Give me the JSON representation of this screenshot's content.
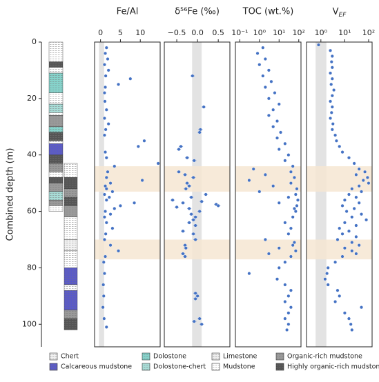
{
  "depth_axis": {
    "label": "Combined depth (m)",
    "ylim": [
      0,
      108
    ],
    "yticks": [
      0,
      20,
      40,
      60,
      80,
      100
    ]
  },
  "highlight_intervals": [
    [
      44,
      53
    ],
    [
      70,
      77
    ]
  ],
  "chart_data": [
    {
      "type": "scatter",
      "title": "Fe/Al",
      "color": "#4472c4",
      "xlim": [
        -1.5,
        15
      ],
      "xticks": [
        0,
        5,
        10
      ],
      "reference_band": [
        -0.4,
        0.9
      ],
      "y": [
        2,
        4,
        6,
        8,
        10,
        12,
        13,
        15,
        16,
        18,
        21,
        24,
        27,
        29,
        31,
        33,
        35,
        37,
        39,
        41,
        43,
        44,
        46,
        48,
        49,
        50,
        51,
        52,
        53,
        54,
        55,
        56,
        57,
        58,
        59,
        60,
        61,
        62,
        64,
        66,
        68,
        70,
        72,
        74,
        76,
        78,
        82,
        86,
        90,
        94,
        98,
        101
      ],
      "x": [
        1.5,
        1.2,
        1.8,
        1.0,
        2.0,
        1.3,
        7.5,
        4.5,
        1.2,
        1.0,
        1.1,
        1.5,
        1.0,
        2.0,
        1.3,
        1.0,
        11.0,
        9.5,
        1.2,
        1.5,
        14.5,
        3.5,
        1.8,
        1.5,
        10.5,
        2.5,
        1.2,
        1.5,
        3.0,
        1.0,
        2.2,
        1.5,
        8.5,
        5.0,
        3.5,
        1.2,
        2.5,
        1.0,
        1.5,
        3.0,
        1.3,
        1.0,
        2.5,
        4.5,
        1.2,
        0.8,
        1.0,
        0.7,
        0.8,
        0.6,
        0.9,
        1.5
      ]
    },
    {
      "type": "errorbar",
      "title": "δ⁵⁶Fe (‰)",
      "color": "#4472c4",
      "xlim": [
        -0.8,
        0.78
      ],
      "xticks": [
        {
          "value": -0.5,
          "label": "−0.5"
        },
        {
          "value": 0,
          "label": "0.0"
        },
        {
          "value": 0.5,
          "label": "0.5"
        }
      ],
      "reference_band": [
        -0.13,
        0.1
      ],
      "y": [
        12,
        23,
        31,
        32,
        37,
        38,
        41,
        42,
        46,
        47,
        48,
        50,
        51,
        52,
        54,
        55,
        56,
        56.5,
        57,
        57.5,
        58,
        58.5,
        59,
        60,
        61,
        62,
        63,
        64,
        65,
        67,
        68,
        70,
        72,
        73,
        75,
        76,
        89,
        90,
        91,
        98,
        99,
        100
      ],
      "x": [
        -0.12,
        0.15,
        0.07,
        0.05,
        -0.4,
        -0.45,
        -0.25,
        -0.08,
        -0.45,
        -0.3,
        -0.1,
        -0.25,
        -0.2,
        -0.28,
        0.2,
        -0.15,
        -0.6,
        0.1,
        -0.35,
        0.45,
        0.5,
        -0.5,
        -0.2,
        0.05,
        -0.15,
        -0.05,
        -0.1,
        -0.2,
        -0.05,
        -0.35,
        -0.1,
        -0.05,
        -0.3,
        -0.28,
        -0.35,
        -0.3,
        -0.05,
        0.0,
        -0.05,
        0.05,
        -0.08,
        0.1
      ],
      "xerr": [
        0.05,
        0.05,
        0.05,
        0.05,
        0.05,
        0.05,
        0.05,
        0.05,
        0.05,
        0.05,
        0.05,
        0.05,
        0.05,
        0.05,
        0.05,
        0.05,
        0.05,
        0.05,
        0.05,
        0.05,
        0.05,
        0.05,
        0.05,
        0.05,
        0.05,
        0.05,
        0.05,
        0.05,
        0.05,
        0.05,
        0.05,
        0.05,
        0.05,
        0.05,
        0.05,
        0.05,
        0.05,
        0.05,
        0.05,
        0.05,
        0.05,
        0.05
      ]
    },
    {
      "type": "scatter",
      "title": "TOC (wt.%)",
      "color": "#4472c4",
      "xscale": "log",
      "xlim": [
        0.06,
        130
      ],
      "xticks": [
        {
          "value": 0.1,
          "label": "10⁻¹"
        },
        {
          "value": 1,
          "label": "10⁰"
        },
        {
          "value": 10,
          "label": "10¹"
        },
        {
          "value": 100,
          "label": "10²"
        }
      ],
      "y": [
        2,
        4,
        6,
        8,
        10,
        12,
        14,
        16,
        18,
        20,
        22,
        24,
        26,
        28,
        30,
        32,
        34,
        36,
        38,
        40,
        42,
        44,
        45,
        46,
        47,
        48,
        49,
        50,
        51,
        52,
        53,
        54,
        55,
        56,
        57,
        58,
        59,
        60,
        62,
        64,
        66,
        68,
        70,
        71,
        72,
        73,
        74,
        75,
        76,
        78,
        80,
        82,
        84,
        86,
        88,
        90,
        92,
        94,
        96,
        98,
        100,
        102
      ],
      "x": [
        1.5,
        0.8,
        2,
        1,
        3,
        1.5,
        4,
        2,
        6,
        3,
        10,
        5,
        3,
        8,
        5,
        12,
        8,
        20,
        10,
        30,
        20,
        50,
        0.5,
        40,
        2,
        60,
        0.3,
        40,
        5,
        80,
        1,
        70,
        30,
        90,
        10,
        80,
        60,
        70,
        50,
        20,
        40,
        30,
        2,
        60,
        50,
        10,
        70,
        3,
        40,
        20,
        10,
        0.3,
        8,
        20,
        40,
        30,
        20,
        40,
        30,
        20,
        30,
        25
      ]
    },
    {
      "type": "scatter",
      "title": [
        "V",
        "EF"
      ],
      "color": "#4472c4",
      "xscale": "log",
      "xlim": [
        0.25,
        140
      ],
      "xticks": [
        {
          "value": 1,
          "label": "10⁰"
        },
        {
          "value": 10,
          "label": "10¹"
        },
        {
          "value": 100,
          "label": "10²"
        }
      ],
      "reference_band": [
        0.6,
        1.7
      ],
      "y": [
        1,
        3,
        5,
        7,
        9,
        11,
        13,
        15,
        17,
        19,
        21,
        23,
        25,
        27,
        29,
        31,
        33,
        35,
        37,
        39,
        41,
        43,
        45,
        46,
        47,
        48,
        49,
        50,
        51,
        52,
        53,
        54,
        55,
        56,
        57,
        58,
        59,
        60,
        61,
        62,
        63,
        64,
        65,
        66,
        67,
        68,
        69,
        70,
        71,
        72,
        73,
        74,
        75,
        76,
        78,
        80,
        82,
        84,
        86,
        88,
        90,
        92,
        94,
        96,
        98,
        100,
        102
      ],
      "x": [
        0.8,
        2.5,
        3,
        2.8,
        3,
        2.5,
        3,
        2.7,
        3.5,
        3,
        2.5,
        3,
        2.8,
        2.5,
        3.2,
        3,
        4,
        4.5,
        6,
        8,
        15,
        25,
        40,
        70,
        30,
        90,
        60,
        100,
        40,
        20,
        50,
        15,
        30,
        10,
        40,
        8,
        25,
        12,
        50,
        20,
        80,
        10,
        30,
        6,
        15,
        8,
        30,
        5,
        20,
        40,
        10,
        20,
        30,
        8,
        4,
        2,
        1.8,
        1.5,
        2,
        5,
        6,
        4,
        50,
        10,
        15,
        18,
        20
      ]
    }
  ],
  "lithology": {
    "legend": [
      {
        "name": "Chert",
        "color": "#f2f2f2"
      },
      {
        "name": "Calcareous mudstone",
        "color": "#5a5ac8"
      },
      {
        "name": "Dolostone",
        "color": "#86d3cb"
      },
      {
        "name": "Dolostone-chert",
        "color": "#a8ddd7"
      },
      {
        "name": "Limestone",
        "color": "#eeeeee"
      },
      {
        "name": "Mudstone",
        "color": "#ffffff"
      },
      {
        "name": "Organic-rich mudstone",
        "color": "#9a9a9a"
      },
      {
        "name": "Highly organic-rich mudstone",
        "color": "#555555"
      }
    ],
    "columns": [
      [
        [
          0,
          7,
          5
        ],
        [
          7,
          9,
          7
        ],
        [
          9,
          11,
          5
        ],
        [
          11,
          18,
          2
        ],
        [
          18,
          22,
          5
        ],
        [
          22,
          25,
          3
        ],
        [
          25,
          26,
          5
        ],
        [
          26,
          30,
          6
        ],
        [
          30,
          32,
          2
        ],
        [
          32,
          35,
          7
        ],
        [
          35,
          36,
          5
        ],
        [
          36,
          40,
          1
        ],
        [
          40,
          43,
          7
        ],
        [
          43,
          46,
          6
        ],
        [
          46,
          48,
          5
        ],
        [
          48,
          50,
          7
        ],
        [
          50,
          53,
          6
        ],
        [
          53,
          56,
          3
        ],
        [
          56,
          58,
          6
        ],
        [
          58,
          60,
          5
        ]
      ],
      [
        [
          43,
          48,
          5
        ],
        [
          48,
          52,
          7
        ],
        [
          52,
          55,
          6
        ],
        [
          55,
          58,
          7
        ],
        [
          58,
          62,
          6
        ],
        [
          62,
          70,
          5
        ],
        [
          70,
          74,
          0
        ],
        [
          74,
          80,
          5
        ],
        [
          80,
          86,
          1
        ],
        [
          86,
          88,
          5
        ],
        [
          88,
          95,
          1
        ],
        [
          95,
          98,
          6
        ],
        [
          98,
          102,
          7
        ]
      ]
    ]
  }
}
